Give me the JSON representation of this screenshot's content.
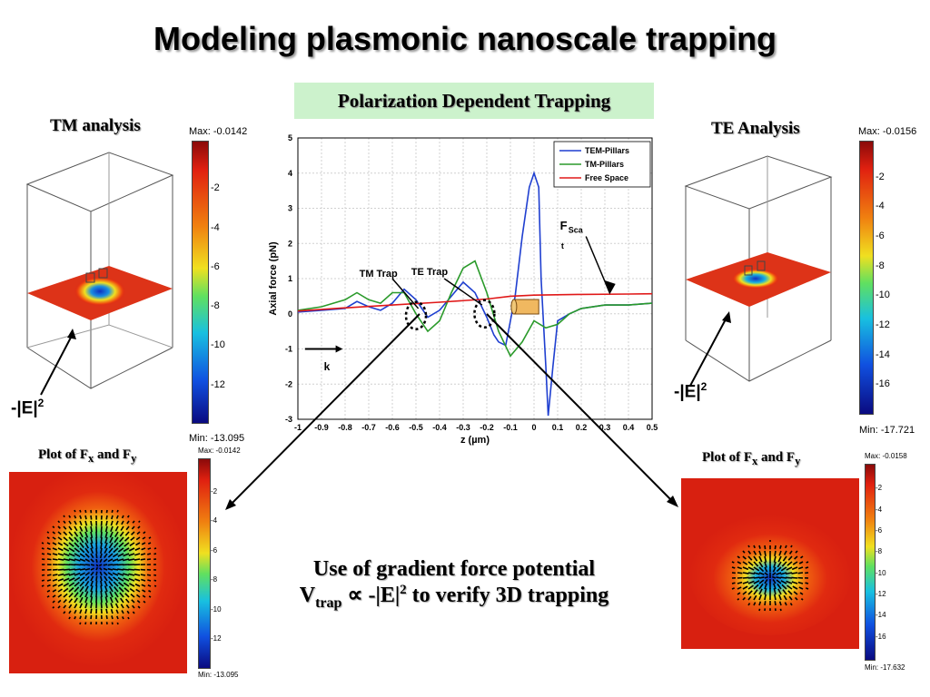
{
  "title": "Modeling plasmonic nanoscale trapping",
  "subtitle": "Polarization Dependent Trapping",
  "tm_panel": {
    "heading": "TM analysis",
    "colorbar_max": "Max: -0.0142",
    "colorbar_min": "Min: -13.095",
    "colorbar_ticks": [
      "-2",
      "-4",
      "-6",
      "-8",
      "-10",
      "-12"
    ],
    "field_label": "-|E|",
    "field_sup": "2"
  },
  "te_panel": {
    "heading": "TE Analysis",
    "colorbar_max": "Max: -0.0156",
    "colorbar_min": "Min: -17.721",
    "colorbar_ticks": [
      "-2",
      "-4",
      "-6",
      "-8",
      "-10",
      "-12",
      "-14",
      "-16"
    ],
    "field_label": "-|E|",
    "field_sup": "2"
  },
  "tm_plot": {
    "heading_pre": "Plot of  F",
    "heading_sub1": "x",
    "heading_mid": " and F",
    "heading_sub2": "y",
    "colorbar_max": "Max: -0.0142",
    "colorbar_min": "Min: -13.095",
    "colorbar_ticks": [
      "-2",
      "-4",
      "-6",
      "-8",
      "-10",
      "-12"
    ]
  },
  "te_plot": {
    "heading_pre": "Plot of  F",
    "heading_sub1": "x",
    "heading_mid": " and F",
    "heading_sub2": "y",
    "colorbar_max": "Max: -0.0158",
    "colorbar_min": "Min: -17.632",
    "colorbar_ticks": [
      "-2",
      "-4",
      "-6",
      "-8",
      "-10",
      "-12",
      "-14",
      "-16"
    ]
  },
  "annotations": {
    "tm_trap": "TM Trap",
    "te_trap": "TE Trap",
    "fscat_main": "F",
    "fscat_sub": "Sca",
    "fscat_tail": "t",
    "k_label": "k"
  },
  "note": {
    "line1": "Use of gradient force potential",
    "v": "V",
    "v_sub": "trap",
    "prop": " ∝ -|E|",
    "sup": "2",
    "rest": " to verify 3D trapping"
  },
  "colors": {
    "tem_pillars": "#1f3fd0",
    "tm_pillars": "#2a9a2a",
    "free_space": "#e01818",
    "subtitle_bg": "#ccf2cc"
  },
  "chart_data": {
    "type": "line",
    "xlabel": "z (µm)",
    "ylabel": "Axial force (pN)",
    "xlim": [
      -1,
      0.5
    ],
    "ylim": [
      -3,
      5
    ],
    "x_ticks": [
      "-1",
      "-0.9",
      "-0.8",
      "-0.7",
      "-0.6",
      "-0.5",
      "-0.4",
      "-0.3",
      "-0.2",
      "-0.1",
      "0",
      "0.1",
      "0.2",
      "0.3",
      "0.4",
      "0.5"
    ],
    "y_ticks": [
      "-3",
      "-2",
      "-1",
      "0",
      "1",
      "2",
      "3",
      "4",
      "5"
    ],
    "legend_position": "top-right",
    "series": [
      {
        "name": "TEM-Pillars",
        "color": "#1f3fd0",
        "x": [
          -1,
          -0.9,
          -0.8,
          -0.75,
          -0.7,
          -0.65,
          -0.6,
          -0.55,
          -0.5,
          -0.45,
          -0.4,
          -0.35,
          -0.3,
          -0.25,
          -0.2,
          -0.17,
          -0.15,
          -0.12,
          -0.1,
          -0.08,
          -0.05,
          -0.02,
          0,
          0.02,
          0.03,
          0.05,
          0.06,
          0.08,
          0.1,
          0.15,
          0.2,
          0.3,
          0.4,
          0.5
        ],
        "y": [
          0.05,
          0.1,
          0.15,
          0.35,
          0.2,
          0.1,
          0.3,
          0.7,
          0.4,
          -0.1,
          0.1,
          0.5,
          0.9,
          0.6,
          -0.1,
          -0.6,
          -0.8,
          -0.9,
          -0.2,
          0.5,
          2.2,
          3.6,
          4.0,
          3.6,
          1.0,
          -1.5,
          -2.9,
          -1.5,
          -0.2,
          0.0,
          0.15,
          0.25,
          0.25,
          0.3
        ]
      },
      {
        "name": "TM-Pillars",
        "color": "#2a9a2a",
        "x": [
          -1,
          -0.9,
          -0.8,
          -0.75,
          -0.7,
          -0.65,
          -0.6,
          -0.55,
          -0.5,
          -0.45,
          -0.4,
          -0.35,
          -0.3,
          -0.25,
          -0.2,
          -0.15,
          -0.1,
          -0.05,
          0,
          0.05,
          0.1,
          0.15,
          0.2,
          0.3,
          0.4,
          0.5
        ],
        "y": [
          0.1,
          0.2,
          0.4,
          0.6,
          0.4,
          0.3,
          0.6,
          0.6,
          0.0,
          -0.5,
          -0.2,
          0.6,
          1.3,
          1.5,
          0.6,
          -0.5,
          -1.2,
          -0.8,
          -0.2,
          -0.4,
          -0.3,
          0.0,
          0.15,
          0.25,
          0.25,
          0.3
        ]
      },
      {
        "name": "Free Space",
        "color": "#e01818",
        "x": [
          -1,
          -0.8,
          -0.6,
          -0.4,
          -0.2,
          -0.1,
          0,
          0.2,
          0.4,
          0.5
        ],
        "y": [
          0.08,
          0.17,
          0.25,
          0.33,
          0.42,
          0.5,
          0.53,
          0.55,
          0.56,
          0.57
        ]
      }
    ]
  }
}
